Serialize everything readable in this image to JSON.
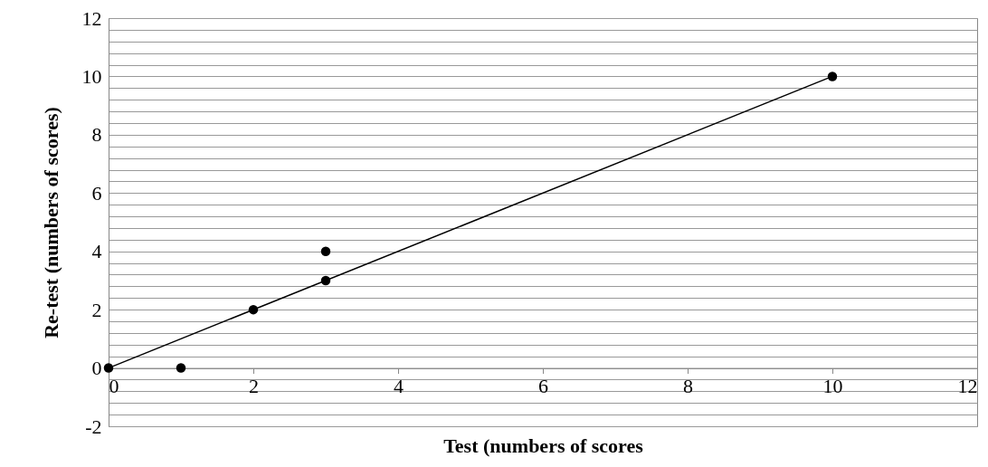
{
  "chart_data": {
    "type": "scatter",
    "xlabel": "Test (numbers of scores",
    "ylabel": "Re-test (numbers of scores)",
    "xlim": [
      0,
      12
    ],
    "xticks": [
      0,
      2,
      4,
      6,
      8,
      10,
      12
    ],
    "ylim": [
      -2,
      12
    ],
    "yticks": [
      -2,
      {
        "value": -1.6,
        "label": null
      },
      {
        "value": -1.2,
        "label": null
      },
      {
        "value": -0.8,
        "label": null
      },
      {
        "value": -0.4,
        "label": null
      },
      0,
      {
        "value": 0.4,
        "label": null
      },
      {
        "value": 0.8,
        "label": null
      },
      {
        "value": 1.2,
        "label": null
      },
      {
        "value": 1.6,
        "label": null
      },
      2,
      {
        "value": 2.4,
        "label": null
      },
      {
        "value": 2.8,
        "label": null
      },
      {
        "value": 3.2,
        "label": null
      },
      {
        "value": 3.6,
        "label": null
      },
      4,
      {
        "value": 4.4,
        "label": null
      },
      {
        "value": 4.8,
        "label": null
      },
      {
        "value": 5.2,
        "label": null
      },
      {
        "value": 5.6,
        "label": null
      },
      6,
      {
        "value": 6.4,
        "label": null
      },
      {
        "value": 6.8,
        "label": null
      },
      {
        "value": 7.2,
        "label": null
      },
      {
        "value": 7.6,
        "label": null
      },
      8,
      {
        "value": 8.4,
        "label": null
      },
      {
        "value": 8.8,
        "label": null
      },
      {
        "value": 9.2,
        "label": null
      },
      {
        "value": 9.6,
        "label": null
      },
      10,
      {
        "value": 10.4,
        "label": null
      },
      {
        "value": 10.8,
        "label": null
      },
      {
        "value": 11.2,
        "label": null
      },
      {
        "value": 11.6,
        "label": null
      },
      12
    ],
    "grid": "y",
    "marker": "circle",
    "series": [
      {
        "color": "#000000",
        "x": [
          0,
          1,
          2,
          3,
          3,
          10
        ],
        "values": [
          0,
          0,
          2,
          3,
          4,
          10
        ]
      },
      {
        "type": "line",
        "color": "#000000",
        "x": [
          0,
          10
        ],
        "values": [
          0,
          10
        ],
        "marker": "none",
        "line_style": "solid"
      }
    ]
  }
}
